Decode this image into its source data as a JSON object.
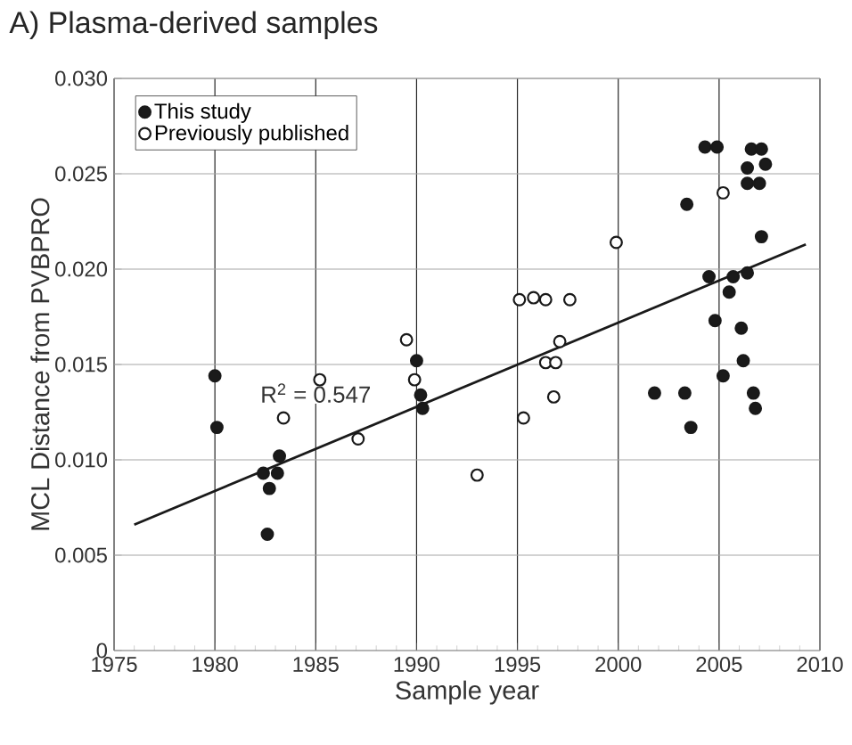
{
  "chart_data": {
    "type": "scatter",
    "title": "A) Plasma-derived samples",
    "xlabel": "Sample year",
    "ylabel": "MCL Distance from PVBPRO",
    "xlim": [
      1975,
      2010
    ],
    "xticks": [
      1975,
      1980,
      1985,
      1990,
      1995,
      2000,
      2005,
      2010
    ],
    "ylim": [
      0,
      0.03
    ],
    "yticks": [
      0,
      0.005,
      {
        "value": 0.01,
        "label": "0.010"
      },
      0.015,
      {
        "value": 0.02,
        "label": "0.020"
      },
      0.025,
      {
        "value": 0.03,
        "label": "0.030"
      }
    ],
    "grid": true,
    "legend": "top left",
    "marker": "circle",
    "annotations": [
      {
        "text": "R$^{2}$ = 0.547",
        "x": 1985,
        "y": 0.0135
      }
    ],
    "series": [
      {
        "name": "This study",
        "color": "#1a1a1a",
        "x": [
          1980.0,
          1980.1,
          1982.4,
          1983.2,
          1983.1,
          1982.7,
          1982.6,
          1990.0,
          1990.2,
          1990.3,
          2004.3,
          2004.9,
          2006.6,
          2007.1,
          2006.4,
          2007.3,
          2006.4,
          2007.0,
          2003.4,
          2007.1,
          2004.5,
          2005.7,
          2006.4,
          2005.5,
          2004.8,
          2006.1,
          2006.2,
          2005.2,
          2001.8,
          2003.3,
          2006.7,
          2006.8,
          2003.6
        ],
        "values": [
          0.0144,
          0.0117,
          0.0093,
          0.0102,
          0.0093,
          0.0085,
          0.0061,
          0.0152,
          0.0134,
          0.0127,
          0.0264,
          0.0264,
          0.0263,
          0.0263,
          0.0253,
          0.0255,
          0.0245,
          0.0245,
          0.0234,
          0.0217,
          0.0196,
          0.0196,
          0.0198,
          0.0188,
          0.0173,
          0.0169,
          0.0152,
          0.0144,
          0.0135,
          0.0135,
          0.0135,
          0.0127,
          0.0117
        ]
      },
      {
        "name": "Previously published",
        "color": "#ffffff",
        "x": [
          1983.4,
          1985.2,
          1987.1,
          1989.5,
          1989.9,
          1993.0,
          1995.1,
          1995.8,
          1996.4,
          1997.6,
          1997.1,
          1996.4,
          1996.9,
          1996.8,
          1995.3,
          1999.9,
          2005.2
        ],
        "values": [
          0.0122,
          0.0142,
          0.0111,
          0.0163,
          0.0142,
          0.0092,
          0.0184,
          0.0185,
          0.0184,
          0.0184,
          0.0162,
          0.0151,
          0.0151,
          0.0133,
          0.0122,
          0.0214,
          0.024
        ]
      },
      {
        "type": "line",
        "color": "#1a1a1a",
        "marker": "none",
        "x": [
          1976.0,
          2009.3
        ],
        "values": [
          0.0066,
          0.0213
        ]
      }
    ]
  }
}
